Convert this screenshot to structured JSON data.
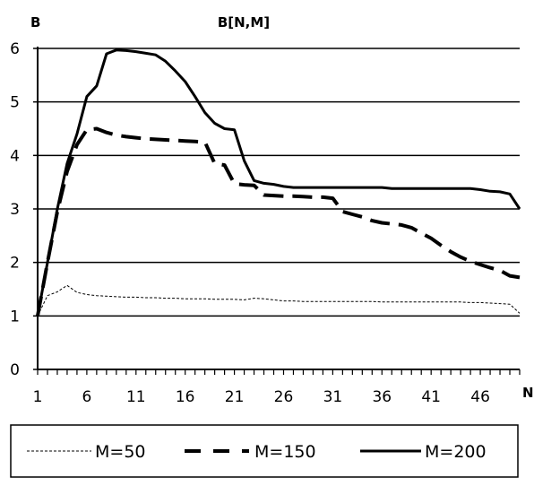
{
  "chart_data": {
    "type": "line",
    "title": "B[N,M]",
    "ylabel": "B",
    "xlabel": "N",
    "xlim": [
      1,
      50
    ],
    "ylim": [
      0,
      6
    ],
    "x_ticks": [
      1,
      6,
      11,
      16,
      21,
      26,
      31,
      36,
      41,
      46
    ],
    "y_ticks": [
      0,
      1,
      2,
      3,
      4,
      5,
      6
    ],
    "grid": true,
    "legend_position": "bottom",
    "x": [
      1,
      2,
      3,
      4,
      5,
      6,
      7,
      8,
      9,
      10,
      11,
      12,
      13,
      14,
      15,
      16,
      17,
      18,
      19,
      20,
      21,
      22,
      23,
      24,
      25,
      26,
      27,
      28,
      29,
      30,
      31,
      32,
      33,
      34,
      35,
      36,
      37,
      38,
      39,
      40,
      41,
      42,
      43,
      44,
      45,
      46,
      47,
      48,
      49,
      50
    ],
    "series": [
      {
        "name": "M=50",
        "style": "dotted",
        "values": [
          1.0,
          1.38,
          1.45,
          1.57,
          1.44,
          1.4,
          1.38,
          1.37,
          1.36,
          1.35,
          1.35,
          1.34,
          1.34,
          1.33,
          1.33,
          1.32,
          1.32,
          1.32,
          1.31,
          1.31,
          1.31,
          1.3,
          1.33,
          1.32,
          1.3,
          1.28,
          1.28,
          1.27,
          1.27,
          1.27,
          1.27,
          1.27,
          1.27,
          1.27,
          1.27,
          1.26,
          1.26,
          1.26,
          1.26,
          1.26,
          1.26,
          1.26,
          1.26,
          1.26,
          1.25,
          1.25,
          1.24,
          1.23,
          1.22,
          1.05
        ]
      },
      {
        "name": "M=150",
        "style": "dashed",
        "values": [
          1.0,
          2.0,
          2.95,
          3.7,
          4.2,
          4.48,
          4.5,
          4.43,
          4.38,
          4.35,
          4.33,
          4.31,
          4.3,
          4.29,
          4.28,
          4.27,
          4.26,
          4.25,
          3.85,
          3.82,
          3.47,
          3.45,
          3.44,
          3.26,
          3.25,
          3.24,
          3.24,
          3.23,
          3.22,
          3.22,
          3.2,
          2.95,
          2.9,
          2.85,
          2.78,
          2.74,
          2.72,
          2.7,
          2.65,
          2.55,
          2.45,
          2.32,
          2.2,
          2.1,
          2.02,
          1.96,
          1.9,
          1.85,
          1.75,
          1.72
        ]
      },
      {
        "name": "M=200",
        "style": "solid",
        "values": [
          1.0,
          2.0,
          3.0,
          3.85,
          4.4,
          5.1,
          5.3,
          5.9,
          5.97,
          5.96,
          5.94,
          5.91,
          5.88,
          5.76,
          5.58,
          5.38,
          5.1,
          4.8,
          4.6,
          4.5,
          4.48,
          3.9,
          3.53,
          3.48,
          3.46,
          3.42,
          3.4,
          3.4,
          3.4,
          3.4,
          3.4,
          3.4,
          3.4,
          3.4,
          3.4,
          3.4,
          3.38,
          3.38,
          3.38,
          3.38,
          3.38,
          3.38,
          3.38,
          3.38,
          3.38,
          3.36,
          3.33,
          3.32,
          3.28,
          3.0
        ]
      }
    ]
  }
}
